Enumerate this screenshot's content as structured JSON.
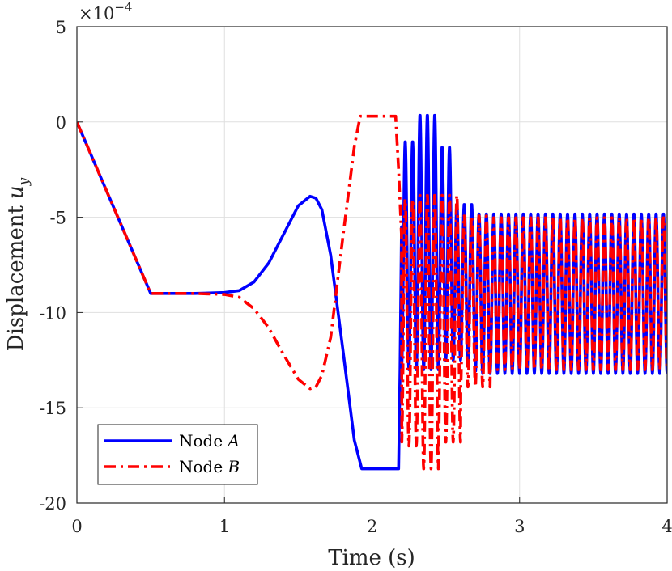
{
  "chart_data": {
    "type": "line",
    "xlabel": "Time (s)",
    "ylabel": "Displacement",
    "ylabel_symbol": "u",
    "ylabel_subscript": "y",
    "y_exponent_prefix": "×10",
    "y_exponent": "−4",
    "xlim": [
      0,
      4
    ],
    "ylim": [
      -20,
      5
    ],
    "xticks": [
      0,
      1,
      2,
      3,
      4
    ],
    "xtick_labels": [
      "0",
      "1",
      "2",
      "3",
      "4"
    ],
    "yticks": [
      5,
      0,
      -5,
      -10,
      -15,
      -20
    ],
    "ytick_labels": [
      "5",
      "0",
      "-5",
      "-10",
      "-15",
      "-20"
    ],
    "grid": true,
    "legend_position": "bottom-left",
    "series": [
      {
        "name_prefix": "Node ",
        "name_symbol": "A",
        "color": "#0000ff",
        "style": "solid",
        "x": [
          0,
          0.5,
          0.8,
          1.0,
          1.1,
          1.2,
          1.3,
          1.4,
          1.5,
          1.58,
          1.62,
          1.66,
          1.72,
          1.8,
          1.88,
          1.93,
          2.18,
          2.19,
          2.2
        ],
        "y": [
          0,
          -9,
          -9,
          -8.95,
          -8.85,
          -8.4,
          -7.4,
          -5.9,
          -4.4,
          -3.9,
          -4.0,
          -4.6,
          -7.0,
          -11.8,
          -16.7,
          -18.2,
          -18.2,
          -13.0,
          -5.5
        ],
        "osc_segments": [
          {
            "t0": 2.2,
            "t1": 2.28,
            "mean": -7.0,
            "amp": 6.0,
            "period": 0.05
          },
          {
            "t0": 2.28,
            "t1": 2.45,
            "mean": -6.3,
            "amp": 6.7,
            "period": 0.05
          },
          {
            "t0": 2.45,
            "t1": 2.55,
            "mean": -6.9,
            "amp": 5.6,
            "period": 0.05
          },
          {
            "t0": 2.55,
            "t1": 2.7,
            "mean": -8.4,
            "amp": 4.1,
            "period": 0.05
          },
          {
            "t0": 2.7,
            "t1": 4.0,
            "mean": -9.0,
            "amp": 4.2,
            "period": 0.05
          }
        ]
      },
      {
        "name_prefix": "Node ",
        "name_symbol": "B",
        "color": "#ff0000",
        "style": "dashdot",
        "x": [
          0,
          0.5,
          0.8,
          1.0,
          1.1,
          1.2,
          1.3,
          1.4,
          1.5,
          1.58,
          1.62,
          1.66,
          1.72,
          1.8,
          1.88,
          1.92,
          2.16,
          2.18,
          2.2
        ],
        "y": [
          0,
          -9,
          -9,
          -9.05,
          -9.2,
          -9.8,
          -10.8,
          -12.2,
          -13.5,
          -14.0,
          -13.9,
          -13.3,
          -11.3,
          -6.2,
          -1.3,
          0.3,
          0.3,
          -2.5,
          -6.0
        ],
        "osc_segments": [
          {
            "t0": 2.2,
            "t1": 2.32,
            "mean": -10.5,
            "amp": 6.5,
            "period": 0.05
          },
          {
            "t0": 2.32,
            "t1": 2.45,
            "mean": -11.0,
            "amp": 7.2,
            "period": 0.05
          },
          {
            "t0": 2.45,
            "t1": 2.6,
            "mean": -10.3,
            "amp": 6.5,
            "period": 0.05
          },
          {
            "t0": 2.6,
            "t1": 2.8,
            "mean": -9.4,
            "amp": 4.5,
            "period": 0.05
          },
          {
            "t0": 2.8,
            "t1": 4.0,
            "mean": -9.0,
            "amp": 4.0,
            "period": 0.05
          }
        ]
      }
    ]
  }
}
